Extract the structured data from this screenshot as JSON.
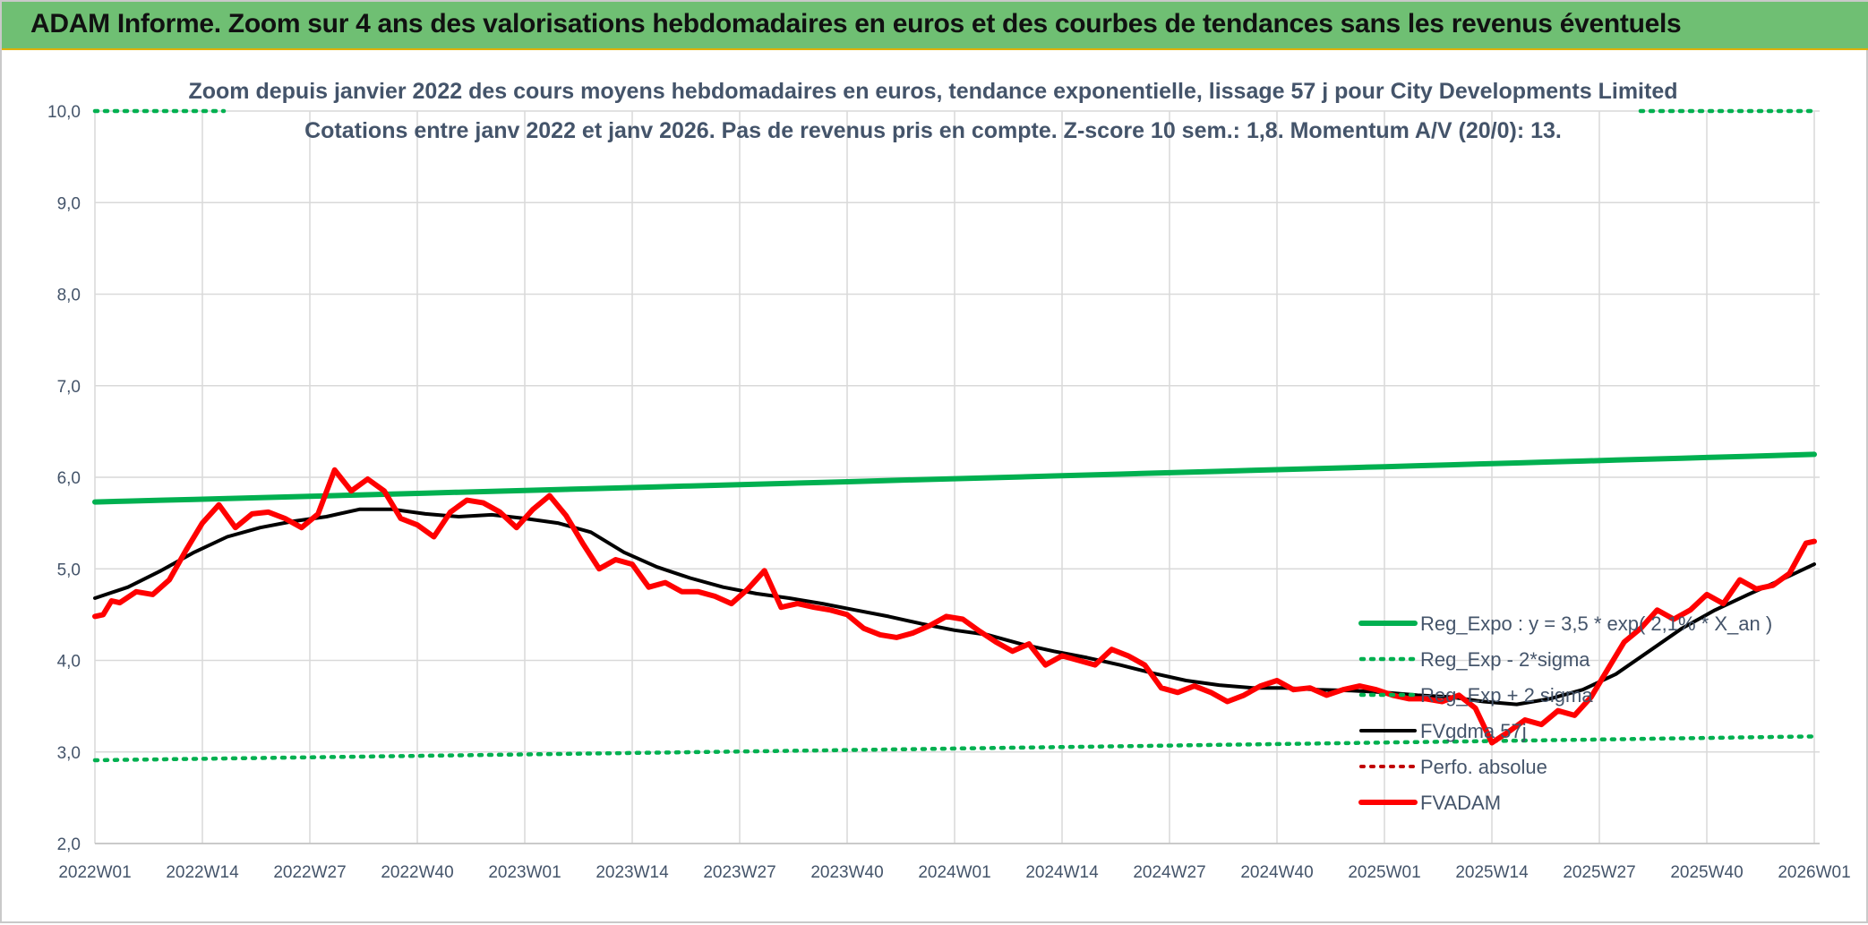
{
  "banner": {
    "title": "ADAM Informe. Zoom sur 4 ans des valorisations hebdomadaires en euros et des courbes de tendances sans les revenus éventuels"
  },
  "colors": {
    "reg_expo": "#00b050",
    "fvgdma": "#000000",
    "fvadam": "#ff0000",
    "perfo": "#c00000",
    "grid": "#d9d9d9",
    "text": "#44546a"
  },
  "chart_data": {
    "type": "line",
    "title": "Zoom depuis janvier 2022 des cours moyens hebdomadaires en euros, tendance exponentielle, lissage 57 j pour City Developments Limited",
    "subtitle": "Cotations entre janv 2022 et janv 2026. Pas de revenus pris en compte. Z-score 10 sem.: 1,8. Momentum A/V (20/0): 13.",
    "xlabel": "",
    "ylabel": "",
    "ylim": [
      2.0,
      10.0
    ],
    "y_ticks": [
      "2,0",
      "3,0",
      "4,0",
      "5,0",
      "6,0",
      "7,0",
      "8,0",
      "9,0",
      "10,0"
    ],
    "x_tick_labels": [
      "2022W01",
      "2022W14",
      "2022W27",
      "2022W40",
      "2023W01",
      "2023W14",
      "2023W27",
      "2023W40",
      "2024W01",
      "2024W14",
      "2024W27",
      "2024W40",
      "2025W01",
      "2025W14",
      "2025W27",
      "2025W40",
      "2026W01"
    ],
    "grid": true,
    "legend_position": "bottom-right",
    "series": [
      {
        "name": "Reg_Expo : y = 3,5 * exp( 2,1% * X_an )",
        "key": "reg_expo",
        "style": "solid-thick",
        "points": [
          [
            "2022W01",
            5.73
          ],
          [
            "2026W01",
            6.25
          ]
        ]
      },
      {
        "name": "Reg_Exp - 2*sigma",
        "key": "reg_exp_minus",
        "style": "dotted",
        "points": [
          [
            "2022W01",
            2.91
          ],
          [
            "2026W01",
            3.17
          ]
        ]
      },
      {
        "name": "Reg_Exp + 2 sigma",
        "key": "reg_exp_plus",
        "style": "dotted",
        "points": [
          [
            "2022W01",
            10.0
          ],
          [
            "2026W01",
            10.0
          ]
        ]
      },
      {
        "name": "FVgdma 57j",
        "key": "fvgdma",
        "style": "solid",
        "points": [
          [
            "2022W01",
            4.68
          ],
          [
            "2022W05",
            4.8
          ],
          [
            "2022W09",
            4.98
          ],
          [
            "2022W13",
            5.18
          ],
          [
            "2022W17",
            5.35
          ],
          [
            "2022W21",
            5.45
          ],
          [
            "2022W25",
            5.52
          ],
          [
            "2022W29",
            5.57
          ],
          [
            "2022W33",
            5.65
          ],
          [
            "2022W37",
            5.65
          ],
          [
            "2022W41",
            5.6
          ],
          [
            "2022W45",
            5.57
          ],
          [
            "2022W49",
            5.59
          ],
          [
            "2023W01",
            5.55
          ],
          [
            "2023W05",
            5.5
          ],
          [
            "2023W09",
            5.4
          ],
          [
            "2023W13",
            5.18
          ],
          [
            "2023W17",
            5.02
          ],
          [
            "2023W21",
            4.9
          ],
          [
            "2023W25",
            4.8
          ],
          [
            "2023W29",
            4.73
          ],
          [
            "2023W33",
            4.68
          ],
          [
            "2023W37",
            4.62
          ],
          [
            "2023W41",
            4.55
          ],
          [
            "2023W45",
            4.48
          ],
          [
            "2023W49",
            4.4
          ],
          [
            "2024W01",
            4.33
          ],
          [
            "2024W05",
            4.28
          ],
          [
            "2024W09",
            4.18
          ],
          [
            "2024W13",
            4.1
          ],
          [
            "2024W17",
            4.03
          ],
          [
            "2024W21",
            3.95
          ],
          [
            "2024W25",
            3.86
          ],
          [
            "2024W29",
            3.78
          ],
          [
            "2024W33",
            3.73
          ],
          [
            "2024W37",
            3.7
          ],
          [
            "2024W41",
            3.7
          ],
          [
            "2024W45",
            3.68
          ],
          [
            "2024W49",
            3.67
          ],
          [
            "2025W01",
            3.65
          ],
          [
            "2025W05",
            3.62
          ],
          [
            "2025W09",
            3.6
          ],
          [
            "2025W13",
            3.55
          ],
          [
            "2025W17",
            3.52
          ],
          [
            "2025W21",
            3.58
          ],
          [
            "2025W25",
            3.68
          ],
          [
            "2025W29",
            3.85
          ],
          [
            "2025W33",
            4.1
          ],
          [
            "2025W37",
            4.35
          ],
          [
            "2025W41",
            4.55
          ],
          [
            "2025W45",
            4.72
          ],
          [
            "2025W49",
            4.88
          ],
          [
            "2026W01",
            5.05
          ]
        ]
      },
      {
        "name": "Perfo. absolue",
        "key": "perfo",
        "style": "dotted",
        "points": []
      },
      {
        "name": "FVADAM",
        "key": "fvadam",
        "style": "solid-thick",
        "points": [
          [
            "2022W01",
            4.48
          ],
          [
            "2022W02",
            4.5
          ],
          [
            "2022W03",
            4.65
          ],
          [
            "2022W04",
            4.63
          ],
          [
            "2022W06",
            4.75
          ],
          [
            "2022W08",
            4.72
          ],
          [
            "2022W10",
            4.88
          ],
          [
            "2022W12",
            5.2
          ],
          [
            "2022W14",
            5.5
          ],
          [
            "2022W16",
            5.7
          ],
          [
            "2022W18",
            5.45
          ],
          [
            "2022W20",
            5.6
          ],
          [
            "2022W22",
            5.62
          ],
          [
            "2022W24",
            5.55
          ],
          [
            "2022W26",
            5.45
          ],
          [
            "2022W28",
            5.6
          ],
          [
            "2022W30",
            6.08
          ],
          [
            "2022W32",
            5.85
          ],
          [
            "2022W34",
            5.98
          ],
          [
            "2022W36",
            5.85
          ],
          [
            "2022W38",
            5.55
          ],
          [
            "2022W40",
            5.48
          ],
          [
            "2022W42",
            5.35
          ],
          [
            "2022W44",
            5.62
          ],
          [
            "2022W46",
            5.75
          ],
          [
            "2022W48",
            5.72
          ],
          [
            "2022W50",
            5.62
          ],
          [
            "2022W52",
            5.45
          ],
          [
            "2023W02",
            5.65
          ],
          [
            "2023W04",
            5.8
          ],
          [
            "2023W06",
            5.58
          ],
          [
            "2023W08",
            5.28
          ],
          [
            "2023W10",
            5.0
          ],
          [
            "2023W12",
            5.1
          ],
          [
            "2023W14",
            5.05
          ],
          [
            "2023W16",
            4.8
          ],
          [
            "2023W18",
            4.85
          ],
          [
            "2023W20",
            4.75
          ],
          [
            "2023W22",
            4.75
          ],
          [
            "2023W24",
            4.7
          ],
          [
            "2023W26",
            4.62
          ],
          [
            "2023W28",
            4.78
          ],
          [
            "2023W30",
            4.98
          ],
          [
            "2023W32",
            4.58
          ],
          [
            "2023W34",
            4.62
          ],
          [
            "2023W36",
            4.58
          ],
          [
            "2023W38",
            4.55
          ],
          [
            "2023W40",
            4.5
          ],
          [
            "2023W42",
            4.35
          ],
          [
            "2023W44",
            4.28
          ],
          [
            "2023W46",
            4.25
          ],
          [
            "2023W48",
            4.3
          ],
          [
            "2023W50",
            4.38
          ],
          [
            "2023W52",
            4.48
          ],
          [
            "2024W02",
            4.45
          ],
          [
            "2024W04",
            4.32
          ],
          [
            "2024W06",
            4.2
          ],
          [
            "2024W08",
            4.1
          ],
          [
            "2024W10",
            4.18
          ],
          [
            "2024W12",
            3.95
          ],
          [
            "2024W14",
            4.05
          ],
          [
            "2024W16",
            4.0
          ],
          [
            "2024W18",
            3.95
          ],
          [
            "2024W20",
            4.12
          ],
          [
            "2024W22",
            4.05
          ],
          [
            "2024W24",
            3.95
          ],
          [
            "2024W26",
            3.7
          ],
          [
            "2024W28",
            3.65
          ],
          [
            "2024W30",
            3.72
          ],
          [
            "2024W32",
            3.65
          ],
          [
            "2024W34",
            3.55
          ],
          [
            "2024W36",
            3.62
          ],
          [
            "2024W38",
            3.72
          ],
          [
            "2024W40",
            3.78
          ],
          [
            "2024W42",
            3.68
          ],
          [
            "2024W44",
            3.7
          ],
          [
            "2024W46",
            3.62
          ],
          [
            "2024W48",
            3.68
          ],
          [
            "2024W50",
            3.72
          ],
          [
            "2024W52",
            3.68
          ],
          [
            "2025W02",
            3.62
          ],
          [
            "2025W04",
            3.58
          ],
          [
            "2025W06",
            3.58
          ],
          [
            "2025W08",
            3.55
          ],
          [
            "2025W10",
            3.62
          ],
          [
            "2025W12",
            3.48
          ],
          [
            "2025W14",
            3.1
          ],
          [
            "2025W16",
            3.22
          ],
          [
            "2025W18",
            3.35
          ],
          [
            "2025W20",
            3.3
          ],
          [
            "2025W22",
            3.45
          ],
          [
            "2025W24",
            3.4
          ],
          [
            "2025W26",
            3.6
          ],
          [
            "2025W28",
            3.9
          ],
          [
            "2025W30",
            4.2
          ],
          [
            "2025W32",
            4.35
          ],
          [
            "2025W34",
            4.55
          ],
          [
            "2025W36",
            4.45
          ],
          [
            "2025W38",
            4.55
          ],
          [
            "2025W40",
            4.72
          ],
          [
            "2025W42",
            4.62
          ],
          [
            "2025W44",
            4.88
          ],
          [
            "2025W46",
            4.78
          ],
          [
            "2025W48",
            4.82
          ],
          [
            "2025W50",
            4.95
          ],
          [
            "2025W52",
            5.28
          ],
          [
            "2026W01",
            5.3
          ]
        ]
      }
    ]
  }
}
